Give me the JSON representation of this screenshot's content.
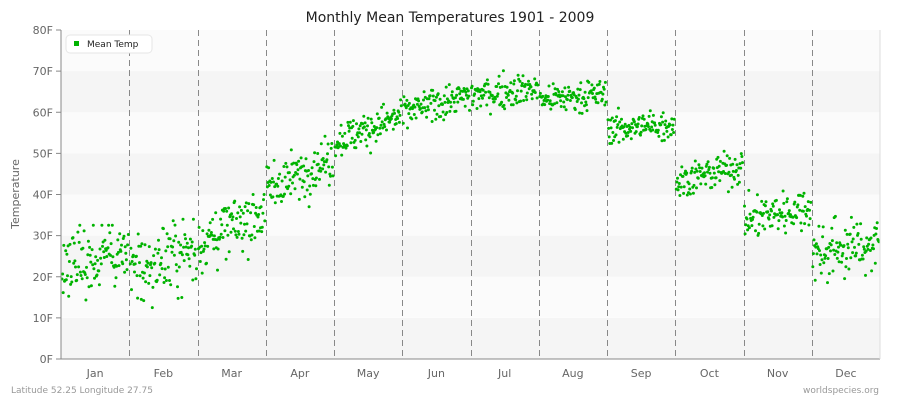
{
  "chart_data": {
    "type": "scatter",
    "title": "Monthly Mean Temperatures 1901 - 2009",
    "xlabel": "",
    "ylabel": "Temperature",
    "ylim": [
      0,
      80
    ],
    "yticks": [
      "0F",
      "10F",
      "20F",
      "30F",
      "40F",
      "50F",
      "60F",
      "70F",
      "80F"
    ],
    "categories": [
      "Jan",
      "Feb",
      "Mar",
      "Apr",
      "May",
      "Jun",
      "Jul",
      "Aug",
      "Sep",
      "Oct",
      "Nov",
      "Dec"
    ],
    "legend": {
      "label": "Mean Temp",
      "position": "top-left",
      "color": "#00b300"
    },
    "grid": {
      "horizontal_bands": true,
      "vertical_dashed_month_separators": true
    },
    "series": [
      {
        "name": "Mean Temp",
        "years": "1901-2009",
        "points_per_month": 109,
        "monthly_summary": [
          {
            "month": "Jan",
            "mean": 23.0,
            "min": 4,
            "max": 32.5,
            "start": 23,
            "end": 26
          },
          {
            "month": "Feb",
            "mean": 23.5,
            "min": 4,
            "max": 34,
            "start": 22,
            "end": 27
          },
          {
            "month": "Mar",
            "mean": 31.5,
            "min": 18,
            "max": 40,
            "start": 28,
            "end": 36
          },
          {
            "month": "Apr",
            "mean": 45.0,
            "min": 34,
            "max": 55.5,
            "start": 41,
            "end": 49
          },
          {
            "month": "May",
            "mean": 56.0,
            "min": 47,
            "max": 63,
            "start": 53,
            "end": 59
          },
          {
            "month": "Jun",
            "mean": 62.5,
            "min": 56,
            "max": 68.5,
            "start": 60,
            "end": 64
          },
          {
            "month": "Jul",
            "mean": 65.0,
            "min": 59,
            "max": 73,
            "start": 64,
            "end": 66
          },
          {
            "month": "Aug",
            "mean": 63.5,
            "min": 58,
            "max": 71,
            "start": 63,
            "end": 64.5
          },
          {
            "month": "Sep",
            "mean": 56.0,
            "min": 50,
            "max": 61,
            "start": 56,
            "end": 57
          },
          {
            "month": "Oct",
            "mean": 44.5,
            "min": 37,
            "max": 51,
            "start": 43,
            "end": 47
          },
          {
            "month": "Nov",
            "mean": 35.0,
            "min": 25,
            "max": 43,
            "start": 34,
            "end": 37
          },
          {
            "month": "Dec",
            "mean": 27.0,
            "min": 15.5,
            "max": 37,
            "start": 26,
            "end": 28
          }
        ],
        "spread_sd": [
          6.0,
          6.5,
          4.5,
          3.8,
          3.0,
          2.6,
          2.6,
          2.5,
          2.4,
          2.8,
          3.6,
          4.6
        ]
      }
    ]
  },
  "footer": {
    "left": "Latitude 52.25 Longitude 27.75",
    "right": "worldspecies.org"
  }
}
